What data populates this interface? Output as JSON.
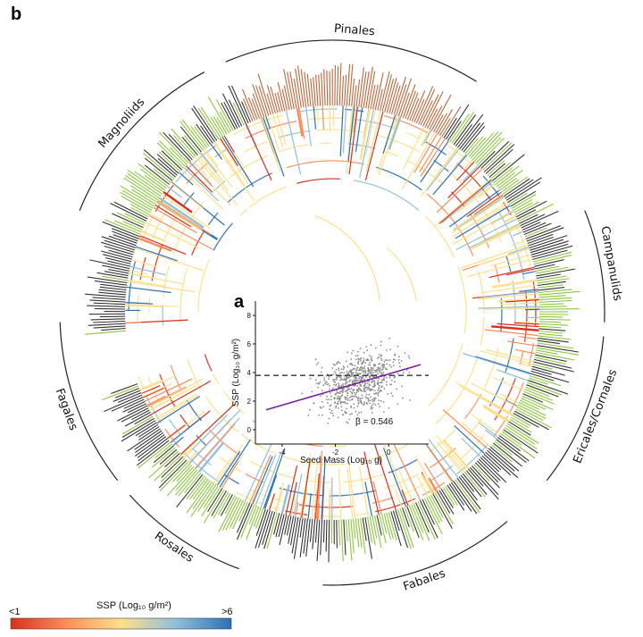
{
  "panel_b_letter": "b",
  "panel_a_letter": "a",
  "colors": {
    "low": "#d7301f",
    "mid_low": "#fc8d59",
    "mid": "#fee08b",
    "mid_high": "#91bfdb",
    "high": "#2c6fb5",
    "angiosperm_label": "#8cc63f",
    "gymnosperm_label": "#c0663a",
    "other_label": "#333333",
    "regression_line": "#7b1fa2"
  },
  "clades": [
    {
      "label": "Magnoliids",
      "start_deg": -68,
      "end_deg": -28
    },
    {
      "label": "Pinales",
      "start_deg": -23,
      "end_deg": 32
    },
    {
      "label": "Campanulids",
      "start_deg": 68,
      "end_deg": 92
    },
    {
      "label": "Ericales/Cornales",
      "start_deg": 95,
      "end_deg": 128
    },
    {
      "label": "Fabales",
      "start_deg": 140,
      "end_deg": 182
    },
    {
      "label": "Rosales",
      "start_deg": 200,
      "end_deg": 228
    },
    {
      "label": "Fagales",
      "start_deg": 232,
      "end_deg": 268
    }
  ],
  "legend": {
    "title": "SSP (Log₁₀ g/m²)",
    "low_label": "<1",
    "high_label": ">6"
  },
  "chart_data": {
    "type": "scatter",
    "xlabel": "Seed Mass (Log₁₀ g)",
    "ylabel": "SSP (Log₁₀ g/m²)",
    "xlim": [
      -5,
      1.5
    ],
    "ylim": [
      -1,
      9
    ],
    "xticks": [
      -4,
      -2,
      0
    ],
    "yticks": [
      0,
      2,
      4,
      6,
      8
    ],
    "reference_y": 3.8,
    "regression": {
      "slope": 0.546,
      "intercept": 3.9
    },
    "annotation": "β = 0.546",
    "n_points": 700
  }
}
